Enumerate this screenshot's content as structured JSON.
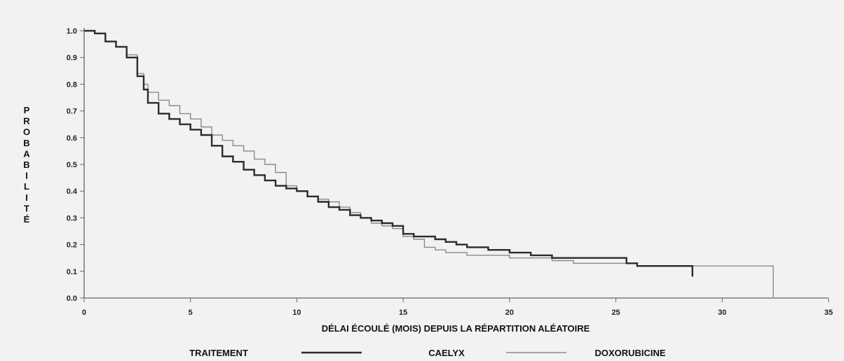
{
  "chart_data": {
    "type": "line",
    "step": true,
    "title": "",
    "xlabel": "DÉLAI ÉCOULÉ (MOIS) DEPUIS LA RÉPARTITION ALÉATOIRE",
    "ylabel": "PROBABILITÉ",
    "xlim": [
      0,
      35
    ],
    "ylim": [
      0.0,
      1.0
    ],
    "xticks": [
      0,
      5,
      10,
      15,
      20,
      25,
      30,
      35
    ],
    "xtick_labels": [
      "0",
      "5",
      "10",
      "15",
      "20",
      "25",
      "30",
      "35"
    ],
    "yticks": [
      0.0,
      0.1,
      0.2,
      0.3,
      0.4,
      0.5,
      0.6,
      0.7,
      0.8,
      0.9,
      1.0
    ],
    "ytick_labels": [
      "0.0",
      "0.1",
      "0.2",
      "0.3",
      "0.4",
      "0.5",
      "0.6",
      "0.7",
      "0.8",
      "0.9",
      "1.0"
    ],
    "grid": false,
    "legend": {
      "title": "TRAITEMENT",
      "placement": "bottom"
    },
    "series": [
      {
        "name": "CAELYX",
        "color": "#2b2b2b",
        "style": "thick",
        "x": [
          0,
          0.5,
          1.0,
          1.5,
          2.0,
          2.5,
          2.8,
          3.0,
          3.5,
          4.0,
          4.5,
          5.0,
          5.5,
          6.0,
          6.5,
          7.0,
          7.5,
          8.0,
          8.5,
          9.0,
          9.5,
          10.0,
          10.5,
          11.0,
          11.5,
          12.0,
          12.5,
          13.0,
          13.5,
          14.0,
          14.5,
          15.0,
          15.5,
          16.0,
          16.5,
          17.0,
          17.5,
          18.0,
          19.0,
          20.0,
          21.0,
          22.0,
          23.0,
          24.0,
          25.0,
          25.5,
          26.0,
          27.0,
          28.0,
          28.6,
          28.6
        ],
        "y": [
          1.0,
          0.99,
          0.96,
          0.94,
          0.9,
          0.83,
          0.78,
          0.73,
          0.69,
          0.67,
          0.65,
          0.63,
          0.61,
          0.57,
          0.53,
          0.51,
          0.48,
          0.46,
          0.44,
          0.42,
          0.41,
          0.4,
          0.38,
          0.36,
          0.34,
          0.33,
          0.31,
          0.3,
          0.29,
          0.28,
          0.27,
          0.24,
          0.23,
          0.23,
          0.22,
          0.21,
          0.2,
          0.19,
          0.18,
          0.17,
          0.16,
          0.15,
          0.15,
          0.15,
          0.15,
          0.13,
          0.12,
          0.12,
          0.12,
          0.12,
          0.08
        ]
      },
      {
        "name": "DOXORUBICINE",
        "color": "#8a8a8a",
        "style": "thin",
        "x": [
          0,
          0.5,
          1.0,
          1.5,
          2.0,
          2.5,
          2.8,
          3.0,
          3.5,
          4.0,
          4.5,
          5.0,
          5.5,
          6.0,
          6.5,
          7.0,
          7.5,
          8.0,
          8.5,
          9.0,
          9.5,
          10.0,
          10.5,
          11.0,
          11.5,
          12.0,
          12.5,
          13.0,
          13.5,
          14.0,
          14.5,
          15.0,
          15.5,
          16.0,
          16.5,
          17.0,
          18.0,
          19.0,
          20.0,
          21.0,
          22.0,
          23.0,
          24.0,
          25.0,
          26.0,
          27.0,
          28.0,
          29.0,
          30.0,
          31.0,
          32.4,
          32.4
        ],
        "y": [
          1.0,
          0.99,
          0.96,
          0.94,
          0.91,
          0.84,
          0.8,
          0.77,
          0.74,
          0.72,
          0.69,
          0.67,
          0.64,
          0.61,
          0.59,
          0.57,
          0.55,
          0.52,
          0.5,
          0.47,
          0.42,
          0.4,
          0.38,
          0.37,
          0.36,
          0.34,
          0.32,
          0.3,
          0.28,
          0.27,
          0.26,
          0.23,
          0.22,
          0.19,
          0.18,
          0.17,
          0.16,
          0.16,
          0.15,
          0.15,
          0.14,
          0.13,
          0.13,
          0.13,
          0.12,
          0.12,
          0.12,
          0.12,
          0.12,
          0.12,
          0.12,
          0.0
        ]
      }
    ]
  }
}
